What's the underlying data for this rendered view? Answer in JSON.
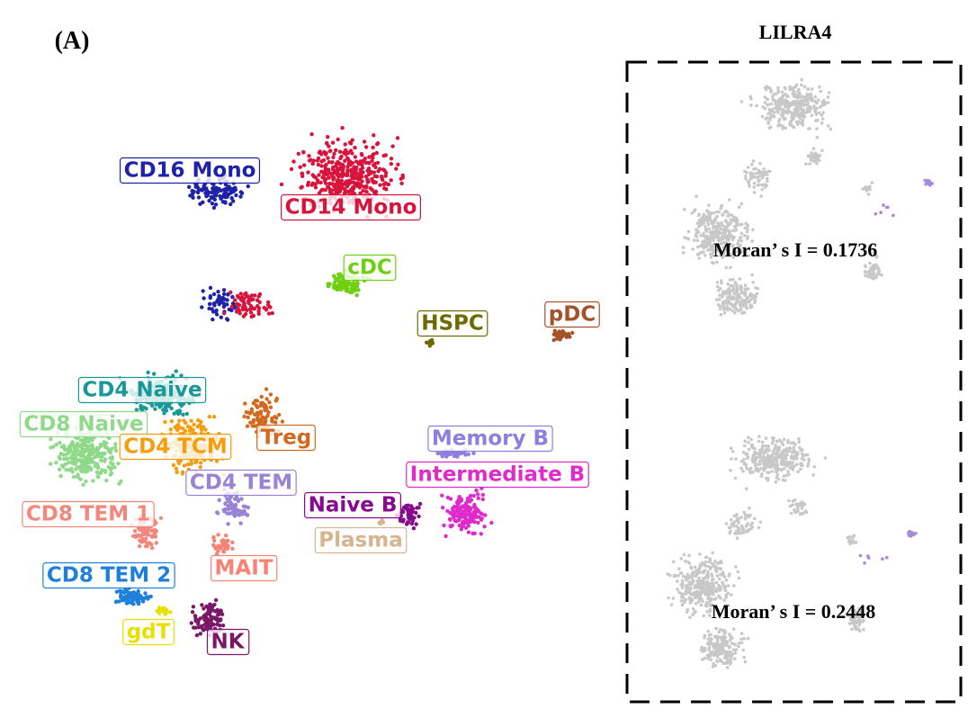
{
  "panel_label": "(A)",
  "title": "LILRA4",
  "clusters": [
    {
      "label": "CD16 Mono",
      "color": "#1f22a8"
    },
    {
      "label": "CD14 Mono",
      "color": "#d8143c"
    },
    {
      "label": "cDC",
      "color": "#6fcf13"
    },
    {
      "label": "HSPC",
      "color": "#6e6a00"
    },
    {
      "label": "pDC",
      "color": "#a5522a"
    },
    {
      "label": "CD4 Naive",
      "color": "#1a9898"
    },
    {
      "label": "CD8 Naive",
      "color": "#8fd98a"
    },
    {
      "label": "CD4 TCM",
      "color": "#f59d0c"
    },
    {
      "label": "Treg",
      "color": "#d2691e"
    },
    {
      "label": "Memory B",
      "color": "#8c7fe0"
    },
    {
      "label": "Intermediate B",
      "color": "#e02bcc"
    },
    {
      "label": "CD4 TEM",
      "color": "#9a83d6"
    },
    {
      "label": "Naive B",
      "color": "#860a8c"
    },
    {
      "label": "CD8 TEM 1",
      "color": "#f2877e"
    },
    {
      "label": "Plasma",
      "color": "#d6b48e"
    },
    {
      "label": "MAIT",
      "color": "#f98373"
    },
    {
      "label": "CD8 TEM 2",
      "color": "#1f80dc"
    },
    {
      "label": "gdT",
      "color": "#e8e000"
    },
    {
      "label": "NK",
      "color": "#7a1868"
    }
  ],
  "moran_labels": [
    "Moran’ s I = 0.1736",
    "Moran’ s I = 0.2448"
  ]
}
